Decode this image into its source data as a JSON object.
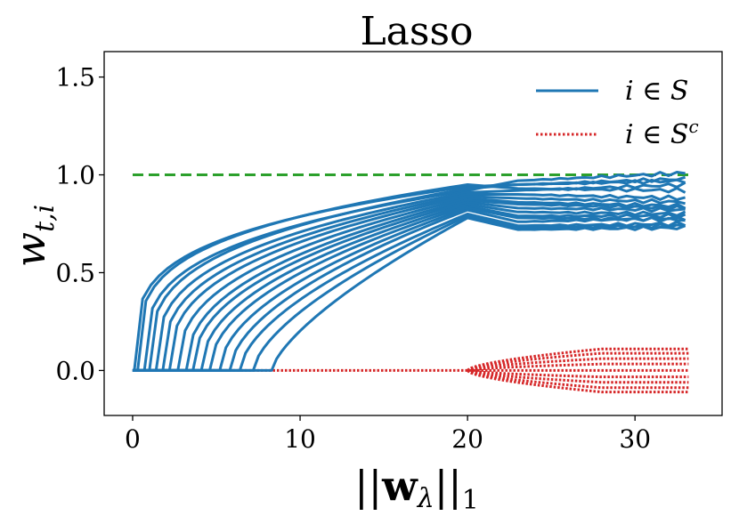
{
  "chart_data": {
    "type": "line",
    "title": "Lasso",
    "xlabel": "||w_λ||_1",
    "ylabel": "w_{t,i}",
    "xlim": [
      -1.7,
      35.2
    ],
    "ylim": [
      -0.23,
      1.63
    ],
    "xticks": [
      0,
      10,
      20,
      30
    ],
    "xtick_labels": [
      "0",
      "10",
      "20",
      "30"
    ],
    "yticks": [
      0.0,
      0.5,
      1.0,
      1.5
    ],
    "ytick_labels": [
      "0.0",
      "0.5",
      "1.0",
      "1.5"
    ],
    "grid": false,
    "legend_position": "top-right",
    "colors": {
      "support": "#1f77b4",
      "off_support": "#d62728",
      "target": "#2ca02c"
    },
    "legend": [
      {
        "label": "i ∈ S",
        "style": "solid",
        "color": "#1f77b4"
      },
      {
        "label": "i ∈ S^c",
        "style": "dotted",
        "color": "#d62728"
      }
    ],
    "reference_line": {
      "y": 1.0,
      "x_range": [
        0,
        33.2
      ],
      "style": "dashed",
      "color": "#2ca02c"
    },
    "x_end": 33.2,
    "series_support": [
      {
        "start": 0.1,
        "v20": 0.94,
        "v23": 0.95,
        "end": 0.97
      },
      {
        "start": 0.3,
        "v20": 0.95,
        "v23": 0.93,
        "end": 0.92
      },
      {
        "start": 0.7,
        "v20": 0.92,
        "v23": 0.97,
        "end": 1.01
      },
      {
        "start": 1.0,
        "v20": 0.93,
        "v23": 0.95,
        "end": 0.98
      },
      {
        "start": 1.4,
        "v20": 0.91,
        "v23": 0.92,
        "end": 0.95
      },
      {
        "start": 1.8,
        "v20": 0.9,
        "v23": 0.9,
        "end": 0.88
      },
      {
        "start": 2.2,
        "v20": 0.89,
        "v23": 0.88,
        "end": 0.86
      },
      {
        "start": 2.7,
        "v20": 0.88,
        "v23": 0.86,
        "end": 0.84
      },
      {
        "start": 3.2,
        "v20": 0.87,
        "v23": 0.85,
        "end": 0.83
      },
      {
        "start": 3.6,
        "v20": 0.86,
        "v23": 0.83,
        "end": 0.82
      },
      {
        "start": 4.1,
        "v20": 0.85,
        "v23": 0.81,
        "end": 0.8
      },
      {
        "start": 4.6,
        "v20": 0.84,
        "v23": 0.79,
        "end": 0.79
      },
      {
        "start": 5.2,
        "v20": 0.83,
        "v23": 0.78,
        "end": 0.77
      },
      {
        "start": 5.8,
        "v20": 0.82,
        "v23": 0.76,
        "end": 0.78
      },
      {
        "start": 6.4,
        "v20": 0.8,
        "v23": 0.74,
        "end": 0.75
      },
      {
        "start": 7.2,
        "v20": 0.79,
        "v23": 0.73,
        "end": 0.74
      },
      {
        "start": 8.3,
        "v20": 0.78,
        "v23": 0.72,
        "end": 0.73
      }
    ],
    "off_support_band": {
      "onset_x": 20,
      "max_amplitude": 0.11,
      "x_end": 33.2
    }
  }
}
